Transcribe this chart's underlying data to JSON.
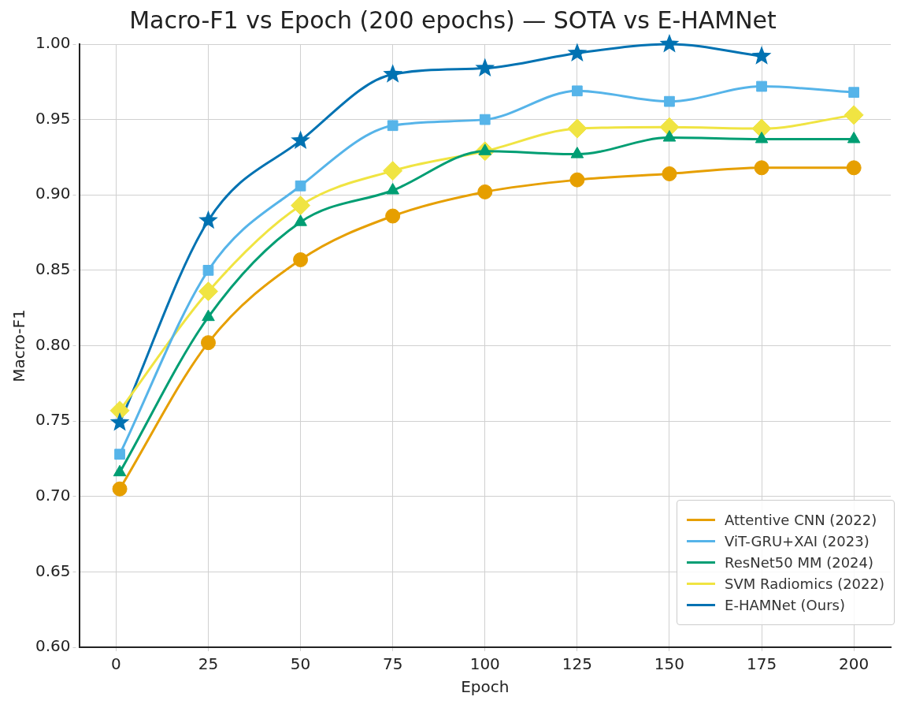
{
  "chart_data": {
    "type": "line",
    "title": "Macro-F1 vs Epoch (200 epochs) — SOTA vs E-HAMNet",
    "xlabel": "Epoch",
    "ylabel": "Macro-F1",
    "x": [
      1,
      25,
      50,
      75,
      100,
      125,
      150,
      175,
      200
    ],
    "series": [
      {
        "name": "Attentive CNN (2022)",
        "color": "#e69f00",
        "marker": "circle",
        "values": [
          0.705,
          0.802,
          0.857,
          0.886,
          0.902,
          0.91,
          0.914,
          0.918,
          0.918
        ]
      },
      {
        "name": "ViT-GRU+XAI (2023)",
        "color": "#56b4e9",
        "marker": "square",
        "values": [
          0.728,
          0.85,
          0.906,
          0.946,
          0.95,
          0.969,
          0.962,
          0.972,
          0.968
        ]
      },
      {
        "name": "ResNet50 MM (2024)",
        "color": "#009e73",
        "marker": "triangle",
        "values": [
          0.716,
          0.819,
          0.882,
          0.903,
          0.929,
          0.927,
          0.938,
          0.937,
          0.937
        ]
      },
      {
        "name": "SVM Radiomics (2022)",
        "color": "#f0e442",
        "marker": "diamond",
        "values": [
          0.757,
          0.836,
          0.893,
          0.916,
          0.929,
          0.944,
          0.945,
          0.944,
          0.953
        ]
      },
      {
        "name": "E-HAMNet (Ours)",
        "color": "#0072b2",
        "marker": "star",
        "values": [
          0.749,
          0.883,
          0.936,
          0.98,
          0.984,
          0.994,
          1.0,
          0.992,
          null
        ]
      }
    ],
    "xlim": [
      -10,
      210
    ],
    "xticks": [
      0,
      25,
      50,
      75,
      100,
      125,
      150,
      175,
      200
    ],
    "ylim": [
      0.6,
      1.0
    ],
    "yticks": [
      {
        "value": 0.6,
        "label": "0.60"
      },
      {
        "value": 0.65,
        "label": "0.65"
      },
      {
        "value": 0.7,
        "label": "0.70"
      },
      {
        "value": 0.75,
        "label": "0.75"
      },
      {
        "value": 0.8,
        "label": "0.80"
      },
      {
        "value": 0.85,
        "label": "0.85"
      },
      {
        "value": 0.9,
        "label": "0.90"
      },
      {
        "value": 0.95,
        "label": "0.95"
      },
      {
        "value": 1.0,
        "label": "1.00"
      }
    ],
    "grid": true,
    "legend": "bottom right",
    "line_style": "solid"
  }
}
